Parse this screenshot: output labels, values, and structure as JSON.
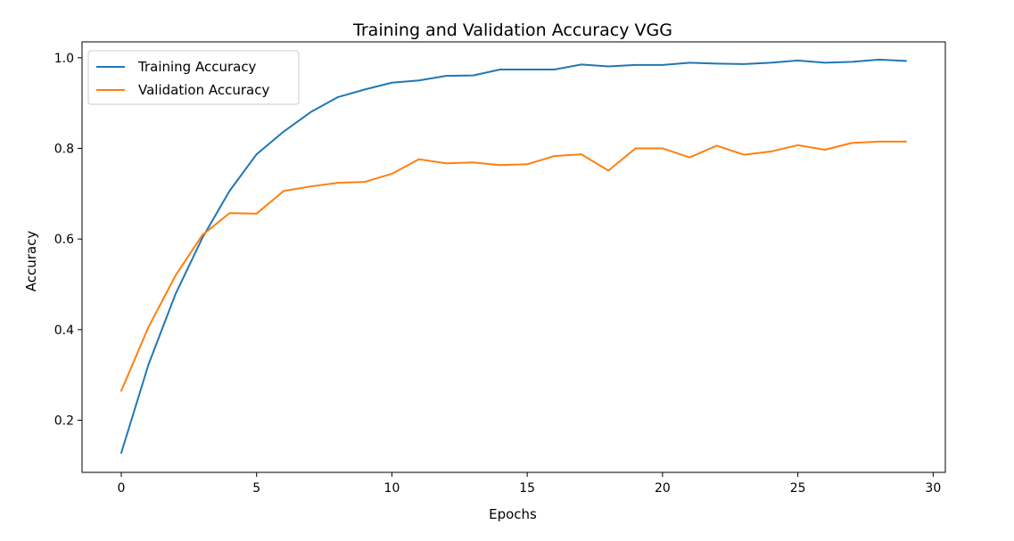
{
  "chart_data": {
    "type": "line",
    "title": "Training and Validation Accuracy VGG",
    "xlabel": "Epochs",
    "ylabel": "Accuracy",
    "xlim": [
      -1.45,
      30.45
    ],
    "ylim": [
      0.085,
      1.035
    ],
    "xticks": [
      0,
      5,
      10,
      15,
      20,
      25,
      30
    ],
    "yticks": [
      0.2,
      0.4,
      0.6,
      0.8,
      1.0
    ],
    "xtick_labels": [
      "0",
      "5",
      "10",
      "15",
      "20",
      "25",
      "30"
    ],
    "ytick_labels": [
      "0.2",
      "0.4",
      "0.6",
      "0.8",
      "1.0"
    ],
    "grid": false,
    "legend_position": "top-left",
    "x": [
      0,
      1,
      2,
      3,
      4,
      5,
      6,
      7,
      8,
      9,
      10,
      11,
      12,
      13,
      14,
      15,
      16,
      17,
      18,
      19,
      20,
      21,
      22,
      23,
      24,
      25,
      26,
      27,
      28,
      29
    ],
    "series": [
      {
        "name": "Training Accuracy",
        "color": "#1f77b4",
        "values": [
          0.128,
          0.322,
          0.478,
          0.603,
          0.706,
          0.787,
          0.837,
          0.88,
          0.913,
          0.93,
          0.945,
          0.95,
          0.96,
          0.961,
          0.974,
          0.974,
          0.974,
          0.985,
          0.981,
          0.984,
          0.984,
          0.989,
          0.987,
          0.986,
          0.989,
          0.994,
          0.989,
          0.991,
          0.996,
          0.993
        ]
      },
      {
        "name": "Validation Accuracy",
        "color": "#ff7f0e",
        "values": [
          0.265,
          0.405,
          0.519,
          0.609,
          0.657,
          0.656,
          0.706,
          0.716,
          0.724,
          0.726,
          0.744,
          0.776,
          0.767,
          0.769,
          0.763,
          0.765,
          0.783,
          0.787,
          0.751,
          0.8,
          0.8,
          0.78,
          0.806,
          0.786,
          0.793,
          0.807,
          0.797,
          0.812,
          0.815,
          0.815
        ]
      }
    ]
  }
}
